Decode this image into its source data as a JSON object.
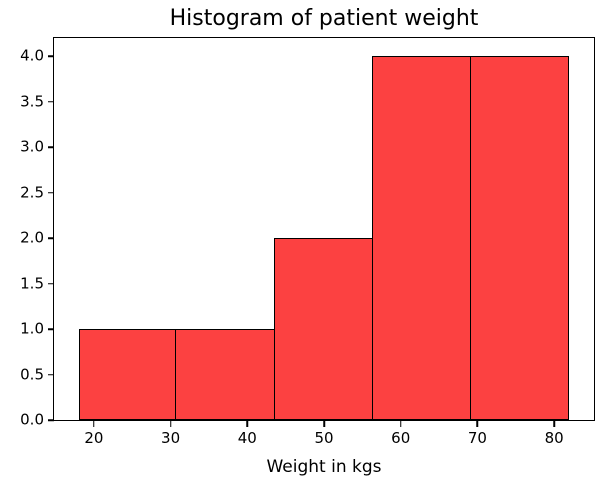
{
  "chart_data": {
    "type": "bar",
    "subtype": "histogram",
    "title": "Histogram of patient weight",
    "xlabel": "Weight in kgs",
    "ylabel": "",
    "bin_edges": [
      18,
      30.8,
      43.6,
      56.4,
      69.2,
      82
    ],
    "counts": [
      1,
      1,
      2,
      4,
      4
    ],
    "xlim": [
      14.8,
      85.2
    ],
    "ylim": [
      0,
      4.2
    ],
    "x_tick_values": [
      20,
      30,
      40,
      50,
      60,
      70,
      80
    ],
    "x_tick_labels": [
      "20",
      "30",
      "40",
      "50",
      "60",
      "70",
      "80"
    ],
    "y_tick_values": [
      0,
      0.5,
      1,
      1.5,
      2,
      2.5,
      3,
      3.5,
      4
    ],
    "y_tick_labels": [
      "0.0",
      "0.5",
      "1.0",
      "1.5",
      "2.0",
      "2.5",
      "3.0",
      "3.5",
      "4.0"
    ],
    "bar_fill_color": "#fc4141",
    "bar_edge_color": "#000000",
    "axis_color": "#000000",
    "grid": false
  }
}
